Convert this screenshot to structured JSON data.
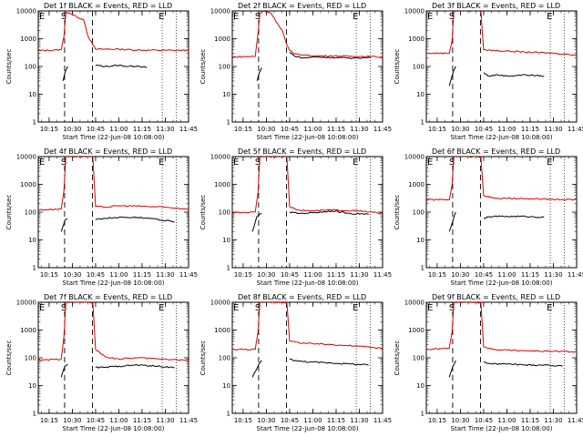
{
  "chart_data": {
    "type": "line",
    "layout": "3x3 grid of panels",
    "y_axis": {
      "scale": "log",
      "ylim": [
        1,
        10000
      ],
      "tick_labels": [
        "1",
        "10",
        "100",
        "1000",
        "10000"
      ],
      "ylabel": "Counts/sec"
    },
    "x_axis": {
      "xlim": [
        "10:08",
        "11:45"
      ],
      "tick_labels": [
        "10:15",
        "10:30",
        "10:45",
        "11:00",
        "11:15",
        "11:30",
        "11:45"
      ],
      "xlabel": "Start Time (22-Jun-08 10:08:00)"
    },
    "series_colors": {
      "events": "#000000",
      "lld": "#dd0000"
    },
    "markers": {
      "E_start": "10:08",
      "S": "10:25",
      "dashed_end": "10:43",
      "E_end": "11:28",
      "dotted_end": "11:37"
    },
    "panels": [
      {
        "title": "Det 1f BLACK = Events, RED = LLD",
        "tick_labels_y": [
          "1",
          "10",
          "100",
          "1000",
          "10000"
        ],
        "events": [
          [
            10.4,
            30
          ],
          [
            10.42,
            60
          ],
          [
            10.45,
            100
          ],
          [
            10.75,
            110
          ],
          [
            10.85,
            100
          ],
          [
            11.0,
            110
          ],
          [
            11.1,
            100
          ],
          [
            11.2,
            105
          ],
          [
            11.3,
            90
          ]
        ],
        "lld": [
          [
            10.13,
            370
          ],
          [
            10.38,
            400
          ],
          [
            10.41,
            1200
          ],
          [
            10.43,
            9000
          ],
          [
            10.47,
            8500
          ],
          [
            10.55,
            6000
          ],
          [
            10.62,
            5000
          ],
          [
            10.67,
            1200
          ],
          [
            10.72,
            600
          ],
          [
            10.75,
            420
          ],
          [
            10.85,
            420
          ],
          [
            11.0,
            420
          ],
          [
            11.2,
            390
          ],
          [
            11.5,
            380
          ],
          [
            11.75,
            380
          ]
        ]
      },
      {
        "title": "Det 2f BLACK = Events, RED = LLD",
        "tick_labels_y": [
          "1",
          "10",
          "100",
          "1000",
          "10000"
        ],
        "events": [
          [
            10.4,
            30
          ],
          [
            10.42,
            55
          ],
          [
            10.45,
            90
          ],
          [
            10.75,
            320
          ],
          [
            10.8,
            240
          ],
          [
            10.9,
            200
          ],
          [
            11.0,
            220
          ],
          [
            11.2,
            210
          ],
          [
            11.4,
            200
          ],
          [
            11.62,
            210
          ]
        ],
        "lld": [
          [
            10.13,
            220
          ],
          [
            10.38,
            230
          ],
          [
            10.41,
            1500
          ],
          [
            10.43,
            8000
          ],
          [
            10.47,
            10000
          ],
          [
            10.55,
            8500
          ],
          [
            10.62,
            3500
          ],
          [
            10.67,
            2000
          ],
          [
            10.72,
            600
          ],
          [
            10.75,
            380
          ],
          [
            10.8,
            280
          ],
          [
            10.9,
            260
          ],
          [
            11.0,
            240
          ],
          [
            11.2,
            240
          ],
          [
            11.5,
            230
          ],
          [
            11.75,
            220
          ]
        ]
      },
      {
        "title": "Det 3f BLACK = Events, RED = LLD",
        "tick_labels_y": [
          "1",
          "10",
          "100",
          "1000",
          "10000"
        ],
        "events": [
          [
            10.38,
            20
          ],
          [
            10.42,
            60
          ],
          [
            10.45,
            100
          ],
          [
            10.75,
            60
          ],
          [
            10.8,
            45
          ],
          [
            10.9,
            50
          ],
          [
            11.0,
            45
          ],
          [
            11.2,
            50
          ],
          [
            11.4,
            45
          ]
        ],
        "lld": [
          [
            10.13,
            300
          ],
          [
            10.38,
            300
          ],
          [
            10.41,
            800
          ],
          [
            10.43,
            10000
          ],
          [
            10.72,
            10000
          ],
          [
            10.75,
            400
          ],
          [
            10.85,
            380
          ],
          [
            11.0,
            360
          ],
          [
            11.2,
            330
          ],
          [
            11.5,
            300
          ],
          [
            11.75,
            260
          ]
        ]
      },
      {
        "title": "Det 4f BLACK = Events, RED = LLD",
        "tick_labels_y": [
          "1",
          "10",
          "100",
          "1000",
          "10000"
        ],
        "events": [
          [
            10.38,
            20
          ],
          [
            10.42,
            50
          ],
          [
            10.45,
            60
          ],
          [
            10.75,
            55
          ],
          [
            10.85,
            60
          ],
          [
            11.0,
            65
          ],
          [
            11.2,
            65
          ],
          [
            11.4,
            55
          ],
          [
            11.6,
            45
          ]
        ],
        "lld": [
          [
            10.13,
            120
          ],
          [
            10.38,
            130
          ],
          [
            10.41,
            600
          ],
          [
            10.43,
            10000
          ],
          [
            10.72,
            10000
          ],
          [
            10.75,
            160
          ],
          [
            10.85,
            150
          ],
          [
            11.0,
            170
          ],
          [
            11.2,
            165
          ],
          [
            11.5,
            150
          ],
          [
            11.75,
            130
          ]
        ]
      },
      {
        "title": "Det 5f BLACK = Events, RED = LLD",
        "tick_labels_y": [
          "1",
          "10",
          "100",
          "1000",
          "10000"
        ],
        "events": [
          [
            10.35,
            20
          ],
          [
            10.4,
            70
          ],
          [
            10.45,
            90
          ],
          [
            10.75,
            100
          ],
          [
            10.85,
            90
          ],
          [
            11.0,
            95
          ],
          [
            11.2,
            110
          ],
          [
            11.4,
            90
          ],
          [
            11.6,
            85
          ]
        ],
        "lld": [
          [
            10.13,
            95
          ],
          [
            10.38,
            100
          ],
          [
            10.41,
            500
          ],
          [
            10.43,
            10000
          ],
          [
            10.72,
            10000
          ],
          [
            10.75,
            160
          ],
          [
            10.85,
            120
          ],
          [
            11.0,
            110
          ],
          [
            11.2,
            120
          ],
          [
            11.5,
            110
          ],
          [
            11.75,
            90
          ]
        ]
      },
      {
        "title": "Det 6f BLACK = Events, RED = LLD",
        "tick_labels_y": [
          "1",
          "10",
          "100",
          "1000",
          "10000"
        ],
        "events": [
          [
            10.38,
            20
          ],
          [
            10.42,
            50
          ],
          [
            10.45,
            100
          ],
          [
            10.75,
            60
          ],
          [
            10.85,
            70
          ],
          [
            11.0,
            70
          ],
          [
            11.2,
            70
          ],
          [
            11.4,
            65
          ]
        ],
        "lld": [
          [
            10.13,
            280
          ],
          [
            10.38,
            280
          ],
          [
            10.41,
            900
          ],
          [
            10.43,
            10000
          ],
          [
            10.72,
            10000
          ],
          [
            10.75,
            400
          ],
          [
            10.85,
            320
          ],
          [
            11.0,
            310
          ],
          [
            11.2,
            300
          ],
          [
            11.5,
            290
          ],
          [
            11.75,
            280
          ]
        ]
      },
      {
        "title": "Det 7f BLACK = Events, RED = LLD",
        "tick_labels_y": [
          "1",
          "10",
          "100",
          "1000",
          "10000"
        ],
        "events": [
          [
            10.38,
            20
          ],
          [
            10.42,
            50
          ],
          [
            10.45,
            60
          ],
          [
            10.75,
            45
          ],
          [
            10.85,
            45
          ],
          [
            11.0,
            50
          ],
          [
            11.2,
            55
          ],
          [
            11.4,
            50
          ],
          [
            11.6,
            45
          ]
        ],
        "lld": [
          [
            10.13,
            80
          ],
          [
            10.38,
            90
          ],
          [
            10.41,
            600
          ],
          [
            10.43,
            10000
          ],
          [
            10.72,
            10000
          ],
          [
            10.75,
            200
          ],
          [
            10.85,
            110
          ],
          [
            11.0,
            90
          ],
          [
            11.2,
            100
          ],
          [
            11.5,
            90
          ],
          [
            11.75,
            80
          ]
        ]
      },
      {
        "title": "Det 8f BLACK = Events, RED = LLD",
        "tick_labels_y": [
          "1",
          "10",
          "100",
          "1000",
          "10000"
        ],
        "events": [
          [
            10.35,
            20
          ],
          [
            10.42,
            60
          ],
          [
            10.45,
            80
          ],
          [
            10.75,
            90
          ],
          [
            10.85,
            75
          ],
          [
            11.0,
            70
          ],
          [
            11.2,
            65
          ],
          [
            11.4,
            60
          ],
          [
            11.6,
            55
          ]
        ],
        "lld": [
          [
            10.13,
            200
          ],
          [
            10.38,
            200
          ],
          [
            10.41,
            800
          ],
          [
            10.43,
            10000
          ],
          [
            10.72,
            10000
          ],
          [
            10.75,
            400
          ],
          [
            10.85,
            350
          ],
          [
            11.0,
            320
          ],
          [
            11.2,
            300
          ],
          [
            11.5,
            260
          ],
          [
            11.75,
            220
          ]
        ]
      },
      {
        "title": "Det 9f BLACK = Events, RED = LLD",
        "tick_labels_y": [
          "1",
          "10",
          "100",
          "1000",
          "10000"
        ],
        "events": [
          [
            10.38,
            20
          ],
          [
            10.42,
            50
          ],
          [
            10.45,
            80
          ],
          [
            10.75,
            70
          ],
          [
            10.85,
            60
          ],
          [
            11.0,
            60
          ],
          [
            11.2,
            55
          ],
          [
            11.4,
            55
          ],
          [
            11.6,
            50
          ]
        ],
        "lld": [
          [
            10.13,
            200
          ],
          [
            10.38,
            220
          ],
          [
            10.41,
            800
          ],
          [
            10.43,
            10000
          ],
          [
            10.72,
            10000
          ],
          [
            10.75,
            250
          ],
          [
            10.85,
            200
          ],
          [
            11.0,
            190
          ],
          [
            11.2,
            180
          ],
          [
            11.5,
            170
          ],
          [
            11.75,
            165
          ]
        ]
      }
    ]
  },
  "markers_text": {
    "E": "E",
    "S": "S"
  }
}
